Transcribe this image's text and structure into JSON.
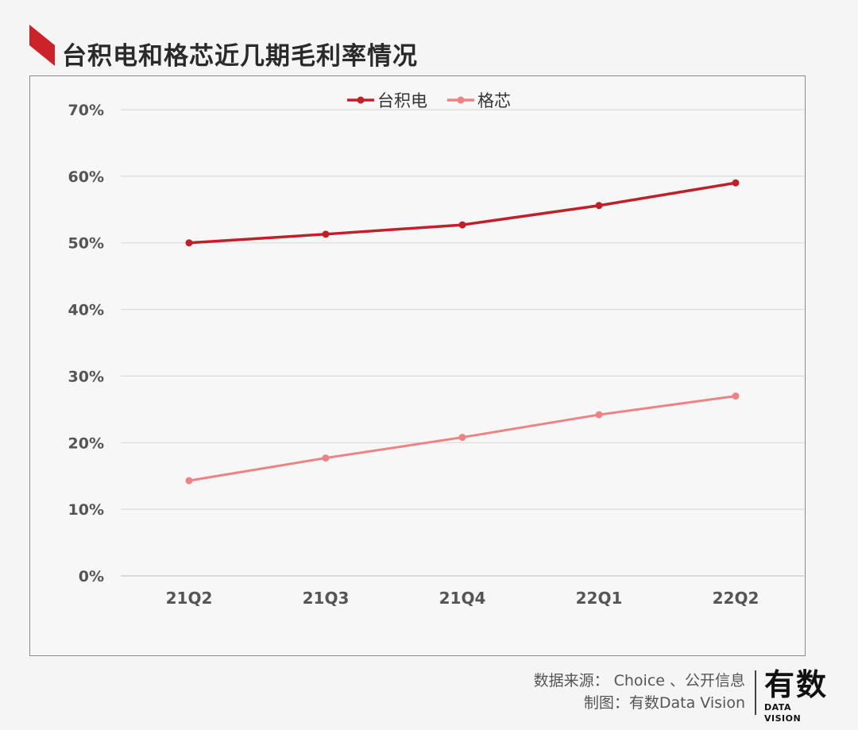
{
  "header": {
    "title": "台积电和格芯近几期毛利率情况"
  },
  "colors": {
    "accent": "#cc2229",
    "tsmc": "#c0202a",
    "gf": "#ef8283",
    "grid": "#d6d6d6",
    "axis_text": "#555555"
  },
  "chart_data": {
    "type": "line",
    "title": "台积电和格芯近几期毛利率情况",
    "categories": [
      "21Q2",
      "21Q3",
      "21Q4",
      "22Q1",
      "22Q2"
    ],
    "series": [
      {
        "name": "台积电",
        "values": [
          50.0,
          51.3,
          52.7,
          55.6,
          59.0
        ]
      },
      {
        "name": "格芯",
        "values": [
          14.3,
          17.7,
          20.8,
          24.2,
          27.0
        ]
      }
    ],
    "ylim": [
      0,
      70
    ],
    "yticks": [
      "0%",
      "10%",
      "20%",
      "30%",
      "40%",
      "50%",
      "60%",
      "70%"
    ],
    "xlabel": "",
    "ylabel": "",
    "grid": true,
    "legend": "top-center"
  },
  "footer": {
    "source": "数据来源： Choice 、公开信息",
    "credit": "制图：有数Data Vision"
  },
  "logo": {
    "main": "有数",
    "sub": "DATA VISION"
  }
}
